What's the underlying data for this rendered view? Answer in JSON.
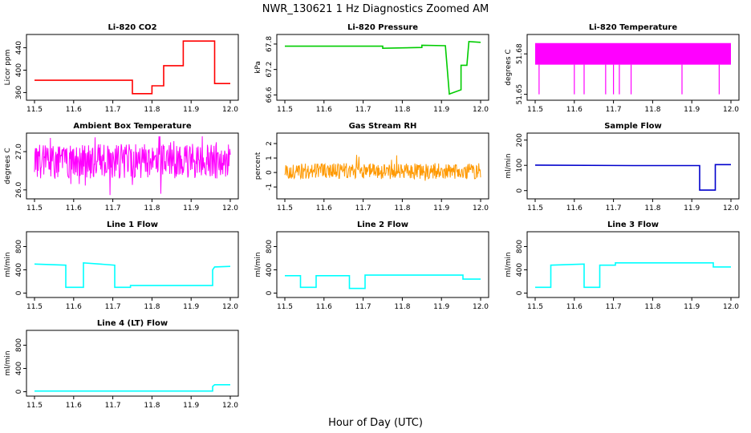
{
  "figure": {
    "title": "NWR_130621  1 Hz Diagnostics Zoomed AM",
    "xlabel": "Hour of Day (UTC)"
  },
  "chart_data": [
    {
      "type": "line",
      "title": "Li-820 CO2",
      "ylabel": "Licor ppm",
      "xlim": [
        11.5,
        12.0
      ],
      "ylim": [
        352,
        458
      ],
      "xticks": [
        "11.5",
        "11.6",
        "11.7",
        "11.8",
        "11.9",
        "12.0"
      ],
      "yticks": [
        "360",
        "400",
        "440"
      ],
      "color": "#ff0000",
      "series": [
        {
          "x": [
            11.5,
            11.75,
            11.75,
            11.8,
            11.8,
            11.83,
            11.83,
            11.88,
            11.88,
            11.96,
            11.96,
            12.0
          ],
          "y": [
            382,
            382,
            358,
            358,
            372,
            372,
            408,
            408,
            452,
            452,
            376,
            376
          ]
        }
      ]
    },
    {
      "type": "line",
      "title": "Li-820 Pressure",
      "ylabel": "kPa",
      "xlim": [
        11.5,
        12.0
      ],
      "ylim": [
        66.55,
        67.95
      ],
      "xticks": [
        "11.5",
        "11.6",
        "11.7",
        "11.8",
        "11.9",
        "12.0"
      ],
      "yticks": [
        "66.6",
        "67.2",
        "67.8"
      ],
      "color": "#00cc00",
      "series": [
        {
          "x": [
            11.5,
            11.75,
            11.75,
            11.85,
            11.85,
            11.91,
            11.92,
            11.95,
            11.95,
            11.965,
            11.97,
            12.0
          ],
          "y": [
            67.75,
            67.75,
            67.7,
            67.72,
            67.77,
            67.76,
            66.62,
            66.72,
            67.3,
            67.3,
            67.86,
            67.84
          ]
        }
      ]
    },
    {
      "type": "line",
      "title": "Li-820 Temperature",
      "ylabel": "degrees C",
      "xlim": [
        11.5,
        12.0
      ],
      "ylim": [
        51.648,
        51.692
      ],
      "xticks": [
        "11.5",
        "11.6",
        "11.7",
        "11.8",
        "11.9",
        "12.0"
      ],
      "yticks": [
        "51.65",
        "51.68"
      ],
      "color": "#ff00ff",
      "series": [
        {
          "x": [
            11.5,
            12.0
          ],
          "y_band": [
            51.672,
            51.688
          ],
          "dips_x": [
            11.51,
            11.6,
            11.625,
            11.68,
            11.7,
            11.715,
            11.745,
            11.875,
            11.97
          ],
          "dips_y": 51.65
        }
      ]
    },
    {
      "type": "line",
      "title": "Ambient Box Temperature",
      "ylabel": "degrees C",
      "xlim": [
        11.5,
        12.0
      ],
      "ylim": [
        25.85,
        27.4
      ],
      "xticks": [
        "11.5",
        "11.6",
        "11.7",
        "11.8",
        "11.9",
        "12.0"
      ],
      "yticks": [
        "26.0",
        "27.0"
      ],
      "color": "#ff00ff",
      "series": [
        {
          "x": [
            11.5,
            12.0
          ],
          "mean": 26.75,
          "amplitude": 0.45
        }
      ]
    },
    {
      "type": "line",
      "title": "Gas Stream RH",
      "ylabel": "percent",
      "xlim": [
        11.5,
        12.0
      ],
      "ylim": [
        -1.6,
        2.5
      ],
      "xticks": [
        "11.5",
        "11.6",
        "11.7",
        "11.8",
        "11.9",
        "12.0"
      ],
      "yticks": [
        "-1",
        "0",
        "1",
        "2"
      ],
      "color": "#ff9900",
      "series": [
        {
          "x": [
            11.5,
            12.0
          ],
          "mean": 0.1,
          "amplitude": 0.55
        }
      ]
    },
    {
      "type": "line",
      "title": "Sample Flow",
      "ylabel": "ml/min",
      "xlim": [
        11.5,
        12.0
      ],
      "ylim": [
        -20,
        215
      ],
      "xticks": [
        "11.5",
        "11.6",
        "11.7",
        "11.8",
        "11.9",
        "12.0"
      ],
      "yticks": [
        "0",
        "100",
        "200"
      ],
      "color": "#0000cc",
      "series": [
        {
          "x": [
            11.5,
            11.75,
            11.92,
            11.92,
            11.96,
            11.96,
            12.0
          ],
          "y": [
            101,
            99,
            99,
            2,
            2,
            103,
            103
          ]
        }
      ]
    },
    {
      "type": "line",
      "title": "Line 1 Flow",
      "ylabel": "ml/min",
      "xlim": [
        11.5,
        12.0
      ],
      "ylim": [
        -20,
        1000
      ],
      "xticks": [
        "11.5",
        "11.6",
        "11.7",
        "11.8",
        "11.9",
        "12.0"
      ],
      "yticks": [
        "0",
        "400",
        "800"
      ],
      "color": "#00ffff",
      "series": [
        {
          "x": [
            11.5,
            11.58,
            11.58,
            11.625,
            11.625,
            11.705,
            11.705,
            11.745,
            11.745,
            11.955,
            11.955,
            11.96,
            12.0
          ],
          "y": [
            500,
            480,
            100,
            100,
            520,
            480,
            100,
            100,
            130,
            130,
            400,
            450,
            460
          ]
        }
      ]
    },
    {
      "type": "line",
      "title": "Line 2 Flow",
      "ylabel": "ml/min",
      "xlim": [
        11.5,
        12.0
      ],
      "ylim": [
        -20,
        1000
      ],
      "xticks": [
        "11.5",
        "11.6",
        "11.7",
        "11.8",
        "11.9",
        "12.0"
      ],
      "yticks": [
        "0",
        "400",
        "800"
      ],
      "color": "#00ffff",
      "series": [
        {
          "x": [
            11.5,
            11.54,
            11.54,
            11.58,
            11.58,
            11.665,
            11.665,
            11.705,
            11.705,
            11.955,
            11.955,
            12.0
          ],
          "y": [
            300,
            300,
            100,
            100,
            300,
            300,
            80,
            80,
            310,
            310,
            240,
            240
          ]
        }
      ]
    },
    {
      "type": "line",
      "title": "Line 3 Flow",
      "ylabel": "ml/min",
      "xlim": [
        11.5,
        12.0
      ],
      "ylim": [
        -20,
        1000
      ],
      "xticks": [
        "11.5",
        "11.6",
        "11.7",
        "11.8",
        "11.9",
        "12.0"
      ],
      "yticks": [
        "0",
        "400",
        "800"
      ],
      "color": "#00ffff",
      "series": [
        {
          "x": [
            11.5,
            11.54,
            11.54,
            11.625,
            11.625,
            11.665,
            11.665,
            11.705,
            11.705,
            11.955,
            11.955,
            12.0
          ],
          "y": [
            100,
            100,
            480,
            500,
            100,
            100,
            480,
            480,
            520,
            520,
            450,
            450
          ]
        }
      ]
    },
    {
      "type": "line",
      "title": "Line 4 (LT) Flow",
      "ylabel": "ml/min",
      "xlim": [
        11.5,
        12.0
      ],
      "ylim": [
        -20,
        1000
      ],
      "xticks": [
        "11.5",
        "11.6",
        "11.7",
        "11.8",
        "11.9",
        "12.0"
      ],
      "yticks": [
        "0",
        "400",
        "800"
      ],
      "color": "#00ffff",
      "series": [
        {
          "x": [
            11.5,
            11.955,
            11.955,
            11.96,
            12.0
          ],
          "y": [
            12,
            12,
            90,
            120,
            120
          ]
        }
      ]
    }
  ]
}
